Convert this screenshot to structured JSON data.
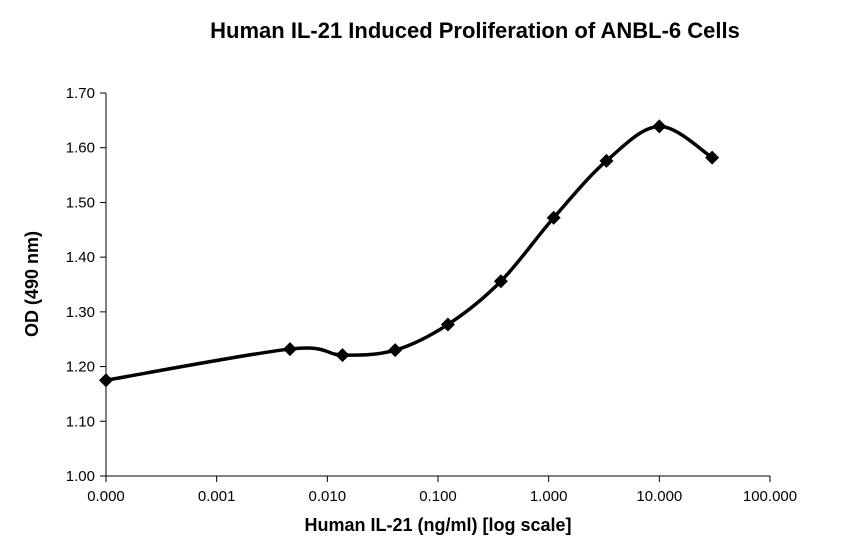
{
  "chart_data": {
    "type": "line",
    "title": "Human IL-21 Induced Proliferation of ANBL-6 Cells",
    "xlabel": "Human IL-21 (ng/ml) [log scale]",
    "ylabel": "OD (490 nm)",
    "x_scale": "log",
    "xlim_decades": [
      -4,
      2
    ],
    "ylim": [
      1.0,
      1.7
    ],
    "y_ticks": [
      "1.00",
      "1.10",
      "1.20",
      "1.30",
      "1.40",
      "1.50",
      "1.60",
      "1.70"
    ],
    "x_ticks": [
      "0.000",
      "0.001",
      "0.010",
      "0.100",
      "1.000",
      "10.000",
      "100.000"
    ],
    "grid": false,
    "legend": "none",
    "line_color": "#000000",
    "marker": "diamond",
    "series": [
      {
        "x": [
          0.0001,
          0.0046,
          0.0137,
          0.041,
          0.123,
          0.37,
          1.11,
          3.33,
          10.0,
          30.0
        ],
        "y": [
          1.175,
          1.232,
          1.221,
          1.23,
          1.277,
          1.356,
          1.472,
          1.576,
          1.639,
          1.582
        ]
      }
    ]
  }
}
